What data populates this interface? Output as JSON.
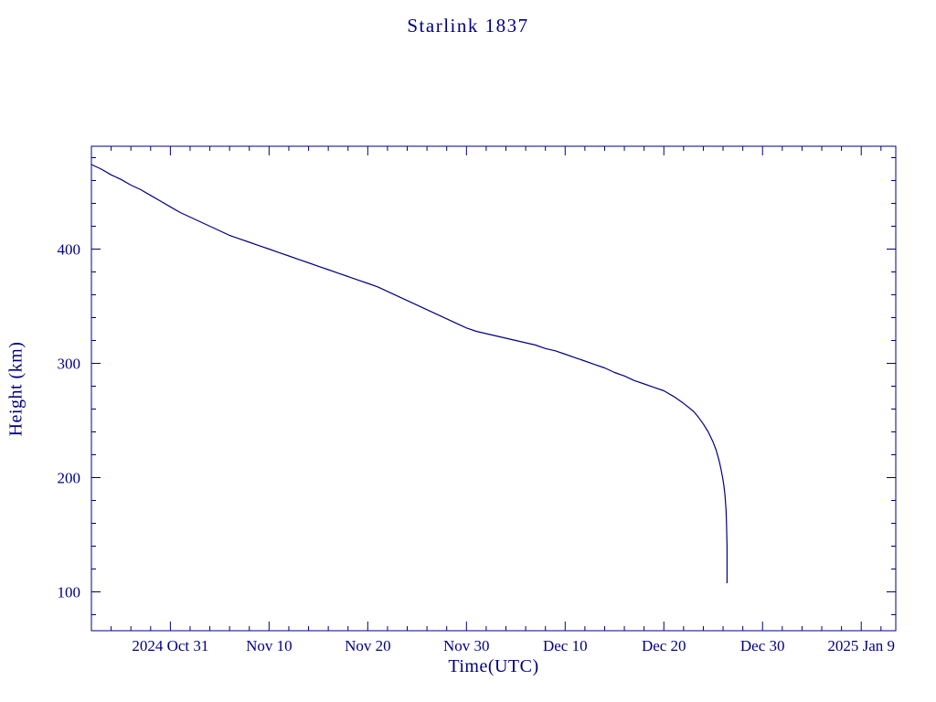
{
  "chart_data": {
    "type": "line",
    "title": "Starlink 1837",
    "xlabel": "Time(UTC)",
    "ylabel": "Height (km)",
    "line_color": "#000080",
    "axis_color": "#000080",
    "background": "#ffffff",
    "grid": false,
    "legend": "none",
    "x_axis": {
      "encoding": "days since 2024 Oct 23",
      "min": 0,
      "max": 81.5,
      "minor_tick_step": 2,
      "major_ticks": [
        {
          "t": 8,
          "label": "2024 Oct 31"
        },
        {
          "t": 18,
          "label": "Nov 10"
        },
        {
          "t": 28,
          "label": "Nov 20"
        },
        {
          "t": 38,
          "label": "Nov 30"
        },
        {
          "t": 48,
          "label": "Dec 10"
        },
        {
          "t": 58,
          "label": "Dec 20"
        },
        {
          "t": 68,
          "label": "Dec 30"
        },
        {
          "t": 78,
          "label": "2025 Jan 9"
        }
      ]
    },
    "y_axis": {
      "min": 66,
      "max": 490,
      "minor_tick_step": 20,
      "major_ticks": [
        {
          "v": 100,
          "label": "100"
        },
        {
          "v": 200,
          "label": "200"
        },
        {
          "v": 300,
          "label": "300"
        },
        {
          "v": 400,
          "label": "400"
        }
      ]
    },
    "series": [
      {
        "name": "height",
        "points": [
          [
            0,
            474
          ],
          [
            1,
            470
          ],
          [
            2,
            465
          ],
          [
            3,
            461
          ],
          [
            4,
            456
          ],
          [
            5,
            452
          ],
          [
            6,
            447
          ],
          [
            7,
            442
          ],
          [
            8,
            437
          ],
          [
            9,
            432
          ],
          [
            10,
            428
          ],
          [
            11,
            424
          ],
          [
            12,
            420
          ],
          [
            13,
            416
          ],
          [
            14,
            412
          ],
          [
            15,
            409
          ],
          [
            16,
            406
          ],
          [
            17,
            403
          ],
          [
            18,
            400
          ],
          [
            19,
            397
          ],
          [
            20,
            394
          ],
          [
            21,
            391
          ],
          [
            22,
            388
          ],
          [
            23,
            385
          ],
          [
            24,
            382
          ],
          [
            25,
            379
          ],
          [
            26,
            376
          ],
          [
            27,
            373
          ],
          [
            28,
            370
          ],
          [
            29,
            367
          ],
          [
            30,
            363
          ],
          [
            31,
            359
          ],
          [
            32,
            355
          ],
          [
            33,
            351
          ],
          [
            34,
            347
          ],
          [
            35,
            343
          ],
          [
            36,
            339
          ],
          [
            37,
            335
          ],
          [
            38,
            331
          ],
          [
            39,
            328
          ],
          [
            40,
            326
          ],
          [
            41,
            324
          ],
          [
            42,
            322
          ],
          [
            43,
            320
          ],
          [
            44,
            318
          ],
          [
            45,
            316
          ],
          [
            46,
            313
          ],
          [
            47,
            311
          ],
          [
            48,
            308
          ],
          [
            49,
            305
          ],
          [
            50,
            302
          ],
          [
            51,
            299
          ],
          [
            52,
            296
          ],
          [
            53,
            292
          ],
          [
            54,
            289
          ],
          [
            55,
            285
          ],
          [
            56,
            282
          ],
          [
            57,
            279
          ],
          [
            58,
            276
          ],
          [
            59,
            271
          ],
          [
            60,
            265
          ],
          [
            61,
            258
          ],
          [
            61.5,
            253
          ],
          [
            62,
            247
          ],
          [
            62.5,
            240
          ],
          [
            63,
            231
          ],
          [
            63.3,
            224
          ],
          [
            63.6,
            215
          ],
          [
            63.8,
            207
          ],
          [
            64,
            198
          ],
          [
            64.1,
            192
          ],
          [
            64.2,
            184
          ],
          [
            64.3,
            172
          ],
          [
            64.35,
            160
          ],
          [
            64.4,
            140
          ],
          [
            64.4,
            108
          ]
        ]
      }
    ]
  }
}
